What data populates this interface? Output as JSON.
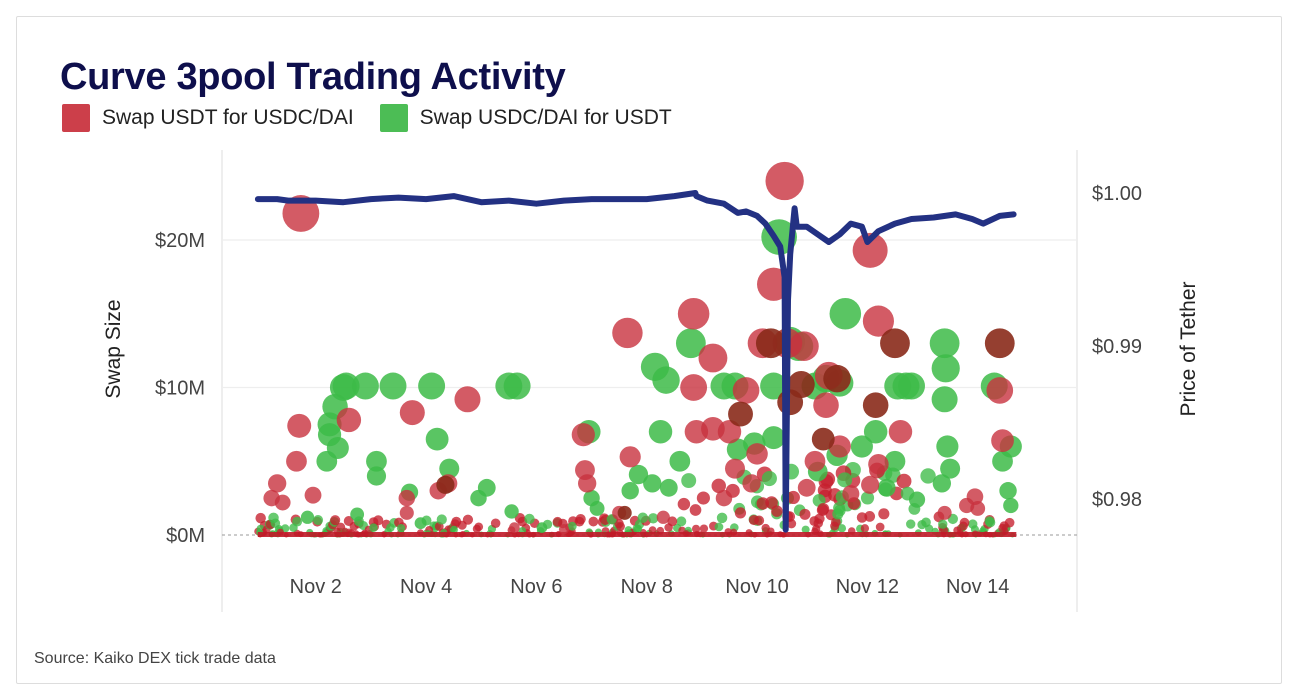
{
  "chart_data": {
    "type": "scatter",
    "title": "Curve 3pool Trading Activity",
    "source": "Source: Kaiko DEX tick trade data",
    "legend": [
      {
        "name": "Swap USDT for USDC/DAI",
        "color": "#cc3f4a"
      },
      {
        "name": "Swap USDC/DAI for USDT",
        "color": "#3dbb48"
      }
    ],
    "ylabel_left": "Swap Size",
    "ylabel_right": "Price of Tether",
    "x_ticks": [
      "Nov 2",
      "Nov 4",
      "Nov 6",
      "Nov 8",
      "Nov 10",
      "Nov 12",
      "Nov 14"
    ],
    "x_tick_values": [
      2,
      4,
      6,
      8,
      10,
      12,
      14
    ],
    "xlim": [
      0.3,
      15.8
    ],
    "y_left_ticks": [
      "$0M",
      "$10M",
      "$20M"
    ],
    "y_left_tick_values": [
      0,
      10,
      20
    ],
    "ylim_left": [
      0,
      26.5
    ],
    "y_right_ticks": [
      "$0.98",
      "$0.99",
      "$1.00"
    ],
    "y_right_tick_values": [
      0.98,
      0.99,
      1.0
    ],
    "ylim_right": [
      0.977,
      1.0078
    ],
    "grid": true,
    "legend_position": "top-left",
    "swap_usdt_for_usdc_dai": [
      {
        "x": 1.73,
        "size_m": 21.8
      },
      {
        "x": 1.7,
        "size_m": 7.4
      },
      {
        "x": 1.65,
        "size_m": 5.0
      },
      {
        "x": 1.3,
        "size_m": 3.5
      },
      {
        "x": 1.2,
        "size_m": 2.5
      },
      {
        "x": 1.4,
        "size_m": 2.2
      },
      {
        "x": 1.95,
        "size_m": 2.7
      },
      {
        "x": 2.6,
        "size_m": 7.8
      },
      {
        "x": 3.75,
        "size_m": 8.3
      },
      {
        "x": 4.22,
        "size_m": 3.0
      },
      {
        "x": 4.4,
        "size_m": 3.5
      },
      {
        "x": 4.75,
        "size_m": 9.2
      },
      {
        "x": 3.65,
        "size_m": 2.5
      },
      {
        "x": 3.65,
        "size_m": 1.5
      },
      {
        "x": 6.85,
        "size_m": 6.8
      },
      {
        "x": 6.88,
        "size_m": 4.4
      },
      {
        "x": 6.92,
        "size_m": 3.5
      },
      {
        "x": 7.5,
        "size_m": 1.5
      },
      {
        "x": 7.65,
        "size_m": 13.7
      },
      {
        "x": 7.7,
        "size_m": 5.3
      },
      {
        "x": 8.85,
        "size_m": 15.0
      },
      {
        "x": 8.85,
        "size_m": 10.0
      },
      {
        "x": 9.2,
        "size_m": 12.0
      },
      {
        "x": 8.9,
        "size_m": 7.0
      },
      {
        "x": 9.2,
        "size_m": 7.2
      },
      {
        "x": 9.5,
        "size_m": 7.0
      },
      {
        "x": 9.8,
        "size_m": 9.8
      },
      {
        "x": 10.1,
        "size_m": 13.0
      },
      {
        "x": 10.3,
        "size_m": 17.0
      },
      {
        "x": 10.5,
        "size_m": 24.0
      },
      {
        "x": 10.55,
        "size_m": 13.0
      },
      {
        "x": 10.85,
        "size_m": 12.8
      },
      {
        "x": 11.3,
        "size_m": 10.8
      },
      {
        "x": 11.25,
        "size_m": 8.8
      },
      {
        "x": 11.05,
        "size_m": 5.0
      },
      {
        "x": 11.5,
        "size_m": 6.0
      },
      {
        "x": 12.05,
        "size_m": 19.3
      },
      {
        "x": 12.2,
        "size_m": 14.5
      },
      {
        "x": 12.2,
        "size_m": 4.8
      },
      {
        "x": 12.6,
        "size_m": 7.0
      },
      {
        "x": 14.4,
        "size_m": 9.8
      },
      {
        "x": 14.45,
        "size_m": 6.4
      },
      {
        "x": 13.4,
        "size_m": 1.5
      },
      {
        "x": 13.8,
        "size_m": 2.0
      },
      {
        "x": 9.6,
        "size_m": 4.5
      },
      {
        "x": 9.9,
        "size_m": 3.5
      },
      {
        "x": 10.0,
        "size_m": 5.5
      },
      {
        "x": 9.4,
        "size_m": 2.5
      },
      {
        "x": 10.9,
        "size_m": 3.2
      },
      {
        "x": 11.7,
        "size_m": 2.8
      },
      {
        "x": 12.05,
        "size_m": 3.4
      },
      {
        "x": 13.95,
        "size_m": 2.6
      },
      {
        "x": 14.0,
        "size_m": 1.8
      },
      {
        "x": 5.6,
        "size_m": 0.5
      },
      {
        "x": 6.5,
        "size_m": 0.4
      },
      {
        "x": 8.3,
        "size_m": 1.2
      }
    ],
    "swap_usdc_dai_for_usdt": [
      {
        "x": 2.55,
        "size_m": 10.1
      },
      {
        "x": 2.5,
        "size_m": 10.0
      },
      {
        "x": 2.35,
        "size_m": 8.7
      },
      {
        "x": 2.25,
        "size_m": 7.5
      },
      {
        "x": 2.25,
        "size_m": 6.8
      },
      {
        "x": 2.4,
        "size_m": 5.9
      },
      {
        "x": 2.2,
        "size_m": 5.0
      },
      {
        "x": 2.9,
        "size_m": 10.1
      },
      {
        "x": 3.1,
        "size_m": 5.0
      },
      {
        "x": 3.1,
        "size_m": 4.0
      },
      {
        "x": 3.4,
        "size_m": 10.1
      },
      {
        "x": 4.1,
        "size_m": 10.1
      },
      {
        "x": 4.2,
        "size_m": 6.5
      },
      {
        "x": 4.42,
        "size_m": 4.5
      },
      {
        "x": 3.7,
        "size_m": 2.9
      },
      {
        "x": 4.95,
        "size_m": 2.5
      },
      {
        "x": 5.1,
        "size_m": 3.2
      },
      {
        "x": 5.5,
        "size_m": 10.1
      },
      {
        "x": 5.65,
        "size_m": 10.1
      },
      {
        "x": 5.55,
        "size_m": 1.6
      },
      {
        "x": 6.95,
        "size_m": 7.0
      },
      {
        "x": 7.0,
        "size_m": 2.5
      },
      {
        "x": 7.1,
        "size_m": 1.8
      },
      {
        "x": 7.7,
        "size_m": 3.0
      },
      {
        "x": 7.85,
        "size_m": 4.1
      },
      {
        "x": 8.15,
        "size_m": 11.4
      },
      {
        "x": 8.35,
        "size_m": 10.5
      },
      {
        "x": 8.25,
        "size_m": 7.0
      },
      {
        "x": 8.6,
        "size_m": 5.0
      },
      {
        "x": 8.1,
        "size_m": 3.5
      },
      {
        "x": 8.4,
        "size_m": 3.2
      },
      {
        "x": 8.8,
        "size_m": 13.0
      },
      {
        "x": 9.4,
        "size_m": 10.1
      },
      {
        "x": 9.6,
        "size_m": 10.1
      },
      {
        "x": 10.4,
        "size_m": 20.2
      },
      {
        "x": 10.6,
        "size_m": 13.1
      },
      {
        "x": 10.3,
        "size_m": 10.1
      },
      {
        "x": 10.75,
        "size_m": 12.8
      },
      {
        "x": 11.05,
        "size_m": 10.1
      },
      {
        "x": 11.25,
        "size_m": 10.6
      },
      {
        "x": 11.6,
        "size_m": 15.0
      },
      {
        "x": 11.5,
        "size_m": 10.3
      },
      {
        "x": 11.9,
        "size_m": 6.0
      },
      {
        "x": 12.55,
        "size_m": 10.1
      },
      {
        "x": 12.7,
        "size_m": 10.1
      },
      {
        "x": 12.8,
        "size_m": 10.1
      },
      {
        "x": 12.5,
        "size_m": 5.0
      },
      {
        "x": 12.15,
        "size_m": 7.0
      },
      {
        "x": 13.4,
        "size_m": 13.0
      },
      {
        "x": 13.42,
        "size_m": 11.3
      },
      {
        "x": 13.4,
        "size_m": 9.2
      },
      {
        "x": 13.45,
        "size_m": 6.0
      },
      {
        "x": 13.5,
        "size_m": 4.5
      },
      {
        "x": 13.35,
        "size_m": 3.5
      },
      {
        "x": 14.3,
        "size_m": 10.1
      },
      {
        "x": 14.45,
        "size_m": 5.0
      },
      {
        "x": 14.6,
        "size_m": 6.0
      },
      {
        "x": 14.55,
        "size_m": 3.0
      },
      {
        "x": 14.6,
        "size_m": 2.0
      },
      {
        "x": 11.1,
        "size_m": 4.3
      },
      {
        "x": 11.45,
        "size_m": 5.4
      },
      {
        "x": 9.65,
        "size_m": 5.8
      },
      {
        "x": 9.95,
        "size_m": 6.2
      },
      {
        "x": 10.3,
        "size_m": 6.6
      },
      {
        "x": 12.35,
        "size_m": 3.2
      },
      {
        "x": 12.9,
        "size_m": 2.4
      },
      {
        "x": 1.85,
        "size_m": 1.2
      },
      {
        "x": 2.75,
        "size_m": 1.4
      },
      {
        "x": 3.9,
        "size_m": 0.8
      },
      {
        "x": 6.1,
        "size_m": 0.5
      }
    ],
    "large_swaps_dark": [
      {
        "x": 10.25,
        "size_m": 13.0
      },
      {
        "x": 10.8,
        "size_m": 10.2
      },
      {
        "x": 11.45,
        "size_m": 10.6
      },
      {
        "x": 12.15,
        "size_m": 8.8
      },
      {
        "x": 12.5,
        "size_m": 13.0
      },
      {
        "x": 14.4,
        "size_m": 13.0
      },
      {
        "x": 9.7,
        "size_m": 8.2
      },
      {
        "x": 10.6,
        "size_m": 9.0
      },
      {
        "x": 11.2,
        "size_m": 6.5
      },
      {
        "x": 4.35,
        "size_m": 3.4
      },
      {
        "x": 7.6,
        "size_m": 1.5
      }
    ],
    "tether_price": [
      {
        "x": 0.95,
        "y": 0.9996
      },
      {
        "x": 1.3,
        "y": 0.9996
      },
      {
        "x": 1.5,
        "y": 0.9995
      },
      {
        "x": 2.0,
        "y": 0.9995
      },
      {
        "x": 2.5,
        "y": 0.9994
      },
      {
        "x": 3.0,
        "y": 0.9996
      },
      {
        "x": 3.5,
        "y": 0.9997
      },
      {
        "x": 4.0,
        "y": 0.9996
      },
      {
        "x": 4.5,
        "y": 0.9998
      },
      {
        "x": 5.0,
        "y": 0.9994
      },
      {
        "x": 5.5,
        "y": 0.9995
      },
      {
        "x": 6.0,
        "y": 0.9993
      },
      {
        "x": 6.5,
        "y": 0.9995
      },
      {
        "x": 7.0,
        "y": 0.9996
      },
      {
        "x": 7.5,
        "y": 0.9996
      },
      {
        "x": 8.0,
        "y": 0.9996
      },
      {
        "x": 8.5,
        "y": 0.9998
      },
      {
        "x": 8.88,
        "y": 1.0
      },
      {
        "x": 8.9,
        "y": 0.9998
      },
      {
        "x": 9.1,
        "y": 0.9995
      },
      {
        "x": 9.4,
        "y": 0.9993
      },
      {
        "x": 9.65,
        "y": 0.9987
      },
      {
        "x": 9.8,
        "y": 0.9988
      },
      {
        "x": 10.0,
        "y": 0.9985
      },
      {
        "x": 10.15,
        "y": 0.998
      },
      {
        "x": 10.3,
        "y": 0.9972
      },
      {
        "x": 10.42,
        "y": 0.9965
      },
      {
        "x": 10.5,
        "y": 0.9945
      },
      {
        "x": 10.52,
        "y": 0.978
      },
      {
        "x": 10.56,
        "y": 0.993
      },
      {
        "x": 10.6,
        "y": 0.996
      },
      {
        "x": 10.68,
        "y": 0.999
      },
      {
        "x": 10.72,
        "y": 0.9978
      },
      {
        "x": 10.9,
        "y": 0.9978
      },
      {
        "x": 11.1,
        "y": 0.9973
      },
      {
        "x": 11.3,
        "y": 0.9968
      },
      {
        "x": 11.5,
        "y": 0.9973
      },
      {
        "x": 11.7,
        "y": 0.998
      },
      {
        "x": 11.9,
        "y": 0.9978
      },
      {
        "x": 12.0,
        "y": 0.9968
      },
      {
        "x": 12.2,
        "y": 0.9975
      },
      {
        "x": 12.5,
        "y": 0.998
      },
      {
        "x": 12.8,
        "y": 0.9983
      },
      {
        "x": 13.2,
        "y": 0.9984
      },
      {
        "x": 13.6,
        "y": 0.9986
      },
      {
        "x": 13.9,
        "y": 0.9983
      },
      {
        "x": 14.1,
        "y": 0.998
      },
      {
        "x": 14.4,
        "y": 0.9985
      },
      {
        "x": 14.65,
        "y": 0.9986
      }
    ]
  }
}
